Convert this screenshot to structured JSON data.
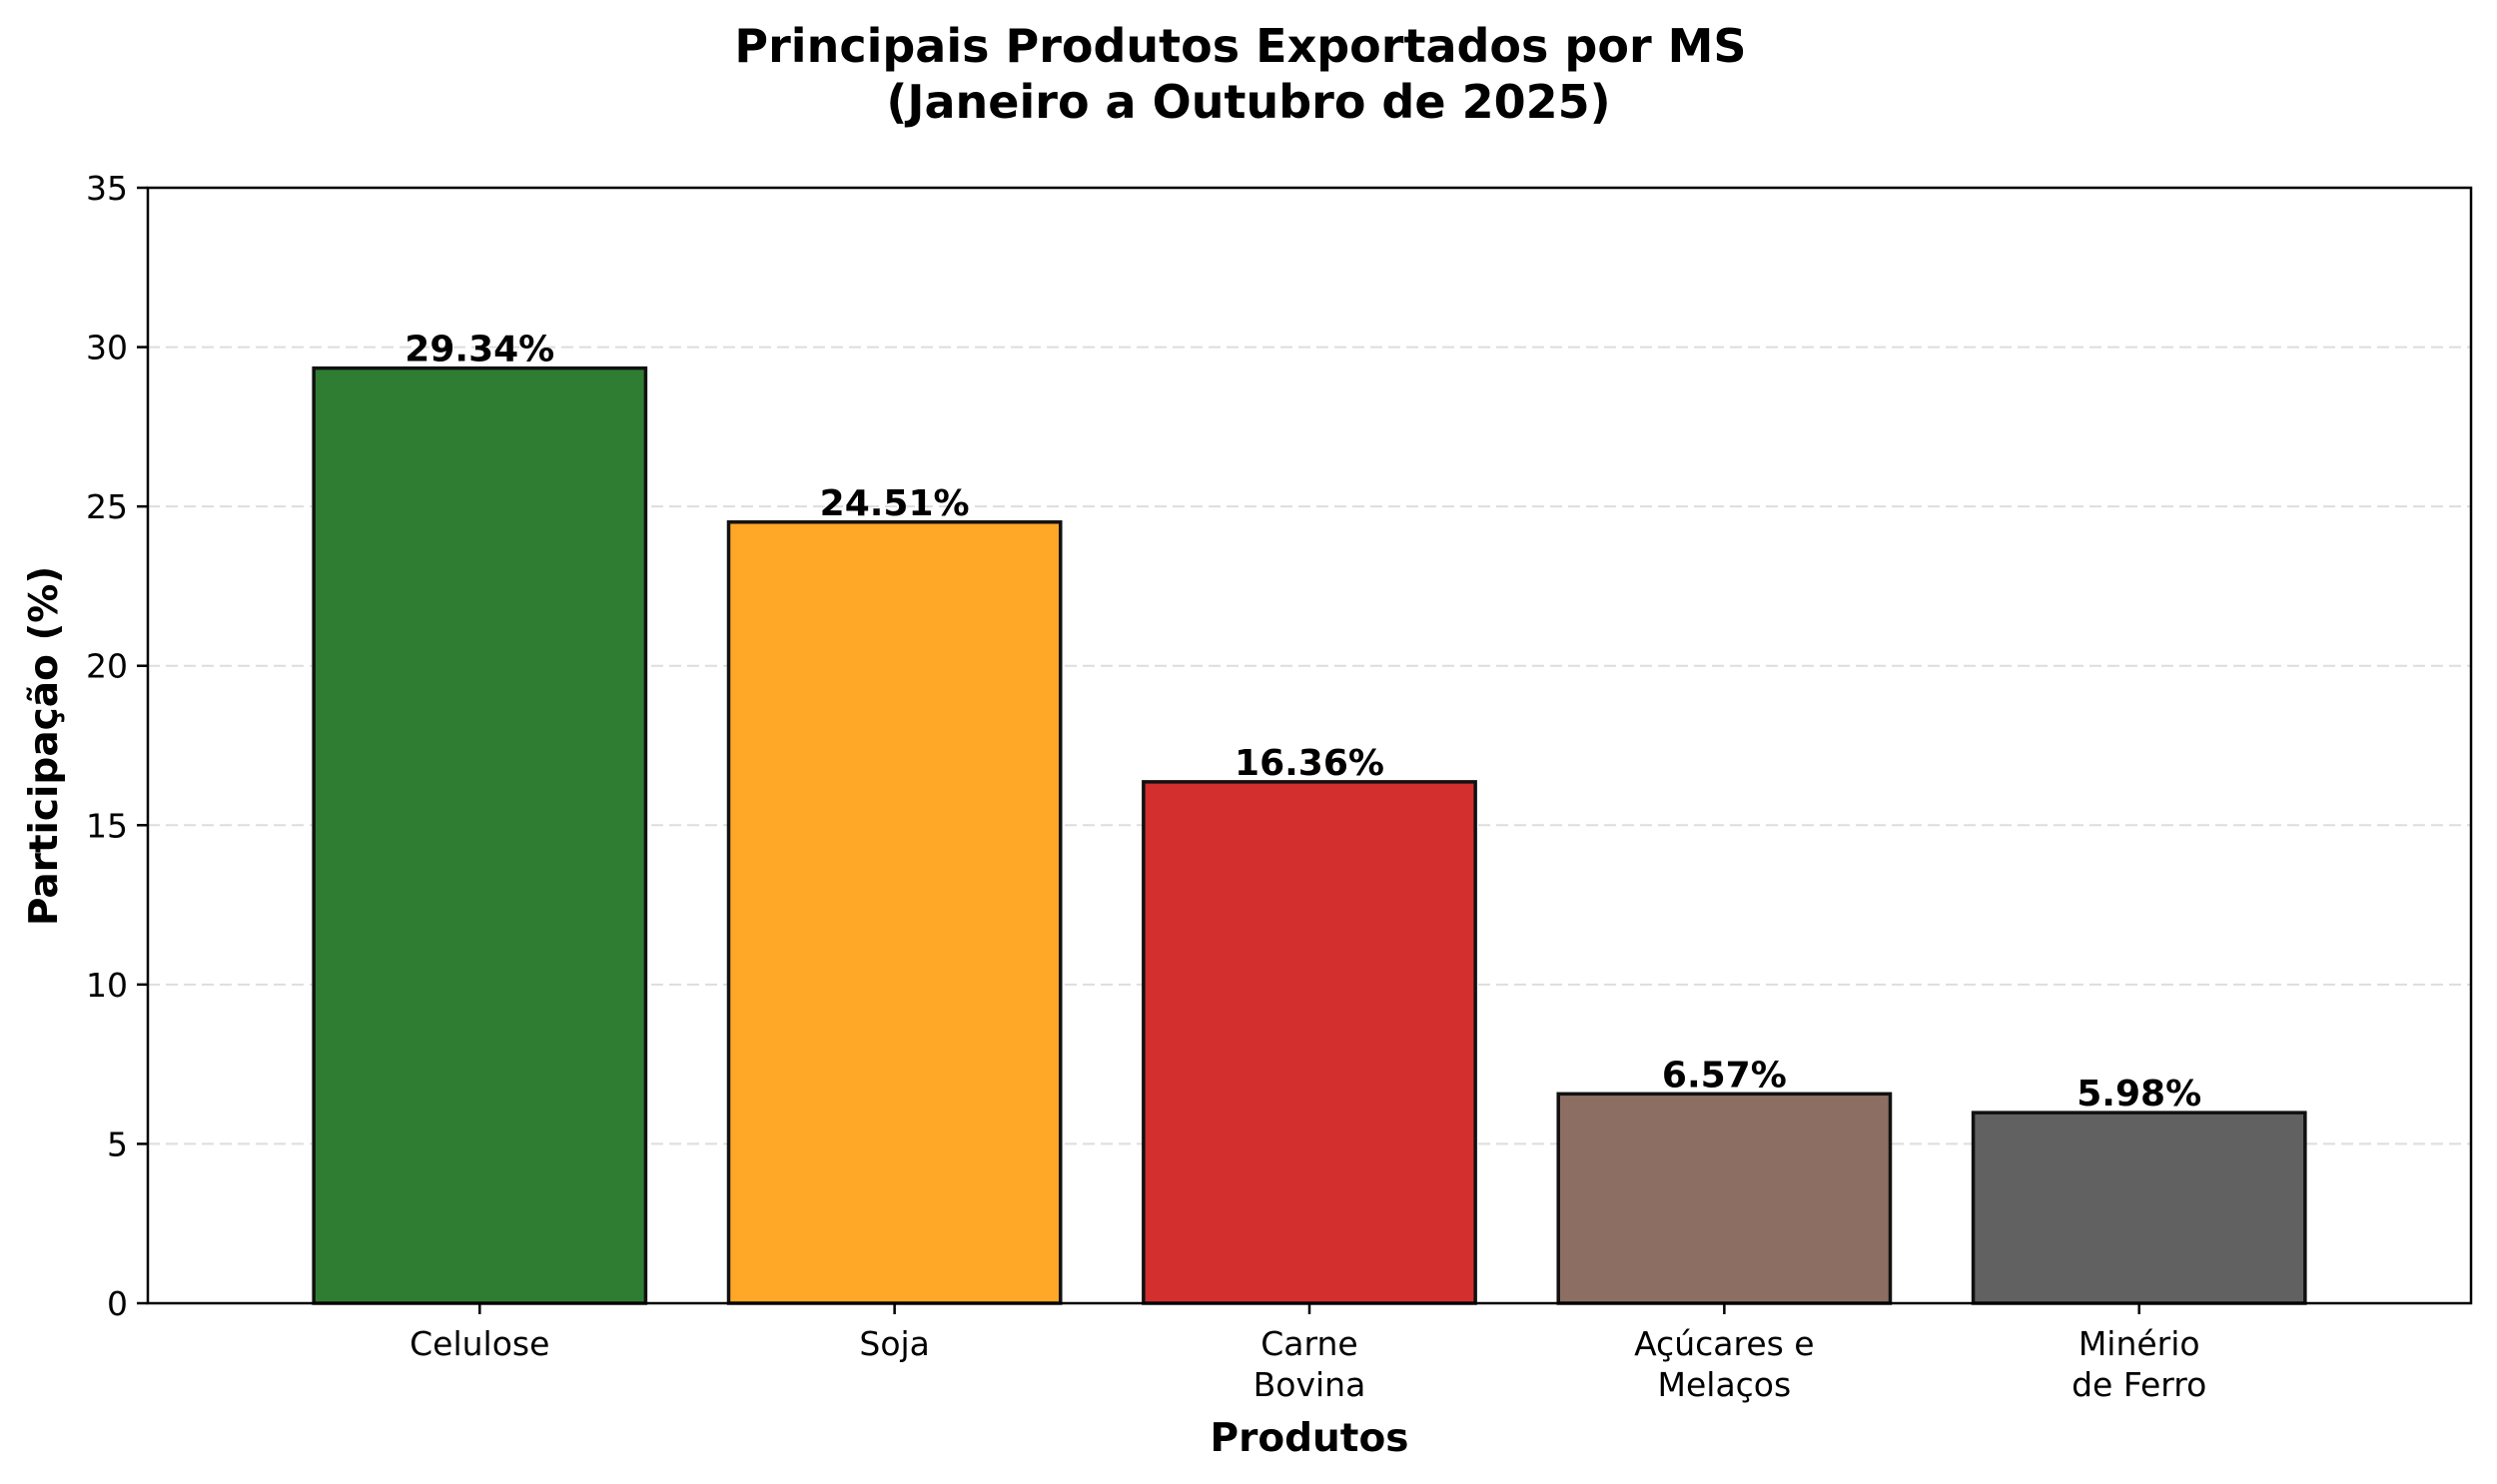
{
  "chart_data": {
    "type": "bar",
    "title": [
      "Principais Produtos Exportados por MS",
      "(Janeiro a Outubro de 2025)"
    ],
    "xlabel": "Produtos",
    "ylabel": "Participação (%)",
    "ylim": [
      0,
      35
    ],
    "yticks": [
      0,
      5,
      10,
      15,
      20,
      25,
      30,
      35
    ],
    "grid": "horizontal dashed",
    "categories": [
      [
        "Celulose"
      ],
      [
        "Soja"
      ],
      [
        "Carne",
        "Bovina"
      ],
      [
        "Açúcares e",
        "Melaços"
      ],
      [
        "Minério",
        "de Ferro"
      ]
    ],
    "values": [
      29.34,
      24.51,
      16.36,
      6.57,
      5.98
    ],
    "data_labels": [
      "29.34%",
      "24.51%",
      "16.36%",
      "6.57%",
      "5.98%"
    ],
    "colors": [
      "#2e7d32",
      "#ffa726",
      "#d32f2f",
      "#8d6e63",
      "#616161"
    ]
  }
}
